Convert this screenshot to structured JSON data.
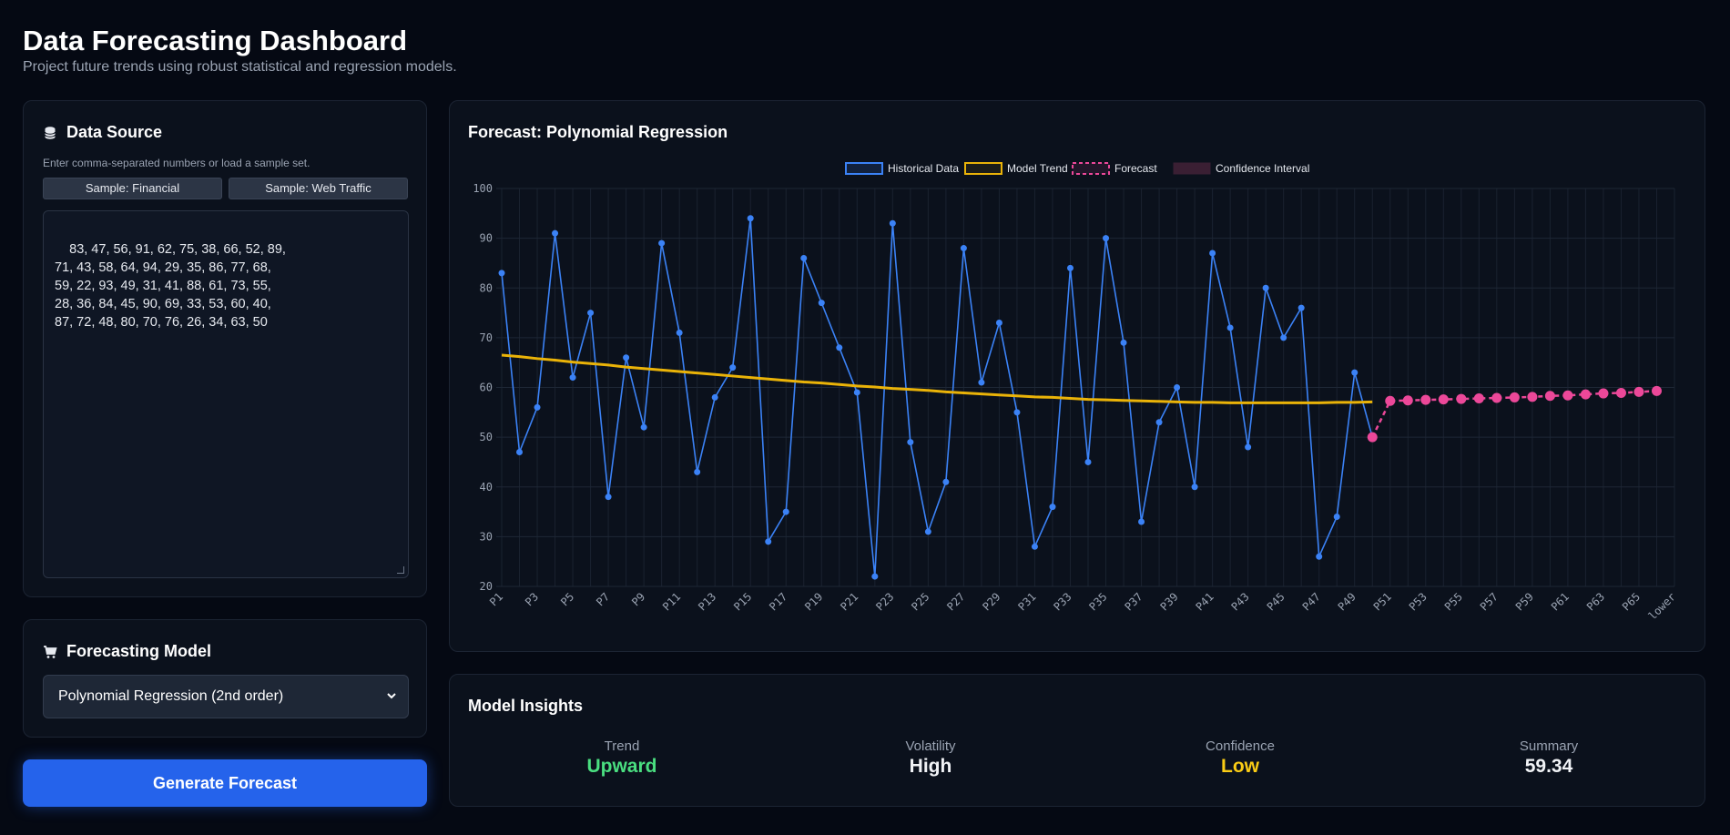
{
  "header": {
    "title": "Data Forecasting Dashboard",
    "subtitle": "Project future trends using robust statistical and regression models."
  },
  "data_source": {
    "title": "Data Source",
    "icon": "database-icon",
    "hint": "Enter comma-separated numbers or load a sample set.",
    "sample_financial": "Sample: Financial",
    "sample_web": "Sample: Web Traffic",
    "data_text": "83, 47, 56, 91, 62, 75, 38, 66, 52, 89,\n71, 43, 58, 64, 94, 29, 35, 86, 77, 68,\n59, 22, 93, 49, 31, 41, 88, 61, 73, 55,\n28, 36, 84, 45, 90, 69, 33, 53, 60, 40,\n87, 72, 48, 80, 70, 76, 26, 34, 63, 50"
  },
  "model": {
    "title": "Forecasting Model",
    "icon": "cart-icon",
    "selected": "Polynomial Regression (2nd order)"
  },
  "generate_label": "Generate Forecast",
  "chart": {
    "title": "Forecast: Polynomial Regression"
  },
  "chart_data": {
    "type": "line",
    "legend": [
      "Historical Data",
      "Model Trend",
      "Forecast",
      "Confidence Interval"
    ],
    "legend_position": "top",
    "x_tick_labels": [
      "P1",
      "P3",
      "P5",
      "P7",
      "P9",
      "P11",
      "P13",
      "P15",
      "P17",
      "P19",
      "P21",
      "P23",
      "P25",
      "P27",
      "P29",
      "P31",
      "P33",
      "P35",
      "P37",
      "P39",
      "P41",
      "P43",
      "P45",
      "P47",
      "P49",
      "P51",
      "P53",
      "P55",
      "P57",
      "P59",
      "P61",
      "P63",
      "P65",
      "lower"
    ],
    "y_ticks": [
      20,
      30,
      40,
      50,
      60,
      70,
      80,
      90,
      100
    ],
    "ylim": [
      20,
      100
    ],
    "x_count": 67,
    "historical": [
      83,
      47,
      56,
      91,
      62,
      75,
      38,
      66,
      52,
      89,
      71,
      43,
      58,
      64,
      94,
      29,
      35,
      86,
      77,
      68,
      59,
      22,
      93,
      49,
      31,
      41,
      88,
      61,
      73,
      55,
      28,
      36,
      84,
      45,
      90,
      69,
      33,
      53,
      60,
      40,
      87,
      72,
      48,
      80,
      70,
      76,
      26,
      34,
      63,
      50
    ],
    "trend": [
      66.5,
      66.2,
      65.8,
      65.5,
      65.1,
      64.8,
      64.5,
      64.1,
      63.8,
      63.5,
      63.2,
      62.9,
      62.6,
      62.3,
      62.0,
      61.7,
      61.4,
      61.1,
      60.9,
      60.6,
      60.3,
      60.1,
      59.8,
      59.6,
      59.4,
      59.1,
      58.9,
      58.7,
      58.5,
      58.3,
      58.1,
      58.0,
      57.8,
      57.6,
      57.5,
      57.4,
      57.3,
      57.2,
      57.1,
      57.0,
      57.0,
      56.9,
      56.9,
      56.9,
      56.9,
      56.9,
      56.9,
      57.0,
      57.0,
      57.1
    ],
    "forecast": [
      50,
      57.3,
      57.4,
      57.5,
      57.6,
      57.7,
      57.8,
      57.9,
      58.0,
      58.1,
      58.3,
      58.4,
      58.6,
      58.8,
      58.9,
      59.1,
      59.3
    ],
    "forecast_start_index": 49,
    "colors": {
      "historical": "#3b82f6",
      "trend": "#eab308",
      "forecast": "#ec4899",
      "confidence": "#3a1f33"
    }
  },
  "insights": {
    "title": "Model Insights",
    "trend_label": "Trend",
    "trend_value": "Upward",
    "volatility_label": "Volatility",
    "volatility_value": "High",
    "confidence_label": "Confidence",
    "confidence_value": "Low",
    "summary_label": "Summary",
    "summary_value": "59.34",
    "colors": {
      "trend": "#4ade80",
      "volatility": "#f1f3f6",
      "confidence": "#facc15",
      "summary": "#f1f3f6"
    }
  }
}
